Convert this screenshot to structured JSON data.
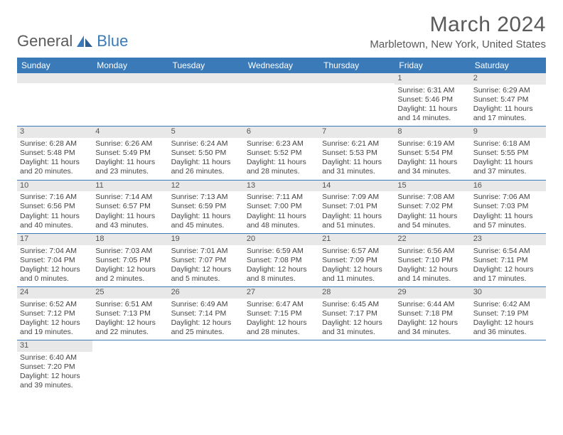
{
  "logo": {
    "text1": "General",
    "text2": "Blue"
  },
  "title": "March 2024",
  "location": "Marbletown, New York, United States",
  "colors": {
    "header_bg": "#3a7ab8",
    "daynum_bg": "#e8e8e8",
    "text": "#444444",
    "row_border": "#3a7ab8"
  },
  "day_headers": [
    "Sunday",
    "Monday",
    "Tuesday",
    "Wednesday",
    "Thursday",
    "Friday",
    "Saturday"
  ],
  "weeks": [
    [
      {
        "n": "",
        "sr": "",
        "ss": "",
        "dl": ""
      },
      {
        "n": "",
        "sr": "",
        "ss": "",
        "dl": ""
      },
      {
        "n": "",
        "sr": "",
        "ss": "",
        "dl": ""
      },
      {
        "n": "",
        "sr": "",
        "ss": "",
        "dl": ""
      },
      {
        "n": "",
        "sr": "",
        "ss": "",
        "dl": ""
      },
      {
        "n": "1",
        "sr": "Sunrise: 6:31 AM",
        "ss": "Sunset: 5:46 PM",
        "dl": "Daylight: 11 hours and 14 minutes."
      },
      {
        "n": "2",
        "sr": "Sunrise: 6:29 AM",
        "ss": "Sunset: 5:47 PM",
        "dl": "Daylight: 11 hours and 17 minutes."
      }
    ],
    [
      {
        "n": "3",
        "sr": "Sunrise: 6:28 AM",
        "ss": "Sunset: 5:48 PM",
        "dl": "Daylight: 11 hours and 20 minutes."
      },
      {
        "n": "4",
        "sr": "Sunrise: 6:26 AM",
        "ss": "Sunset: 5:49 PM",
        "dl": "Daylight: 11 hours and 23 minutes."
      },
      {
        "n": "5",
        "sr": "Sunrise: 6:24 AM",
        "ss": "Sunset: 5:50 PM",
        "dl": "Daylight: 11 hours and 26 minutes."
      },
      {
        "n": "6",
        "sr": "Sunrise: 6:23 AM",
        "ss": "Sunset: 5:52 PM",
        "dl": "Daylight: 11 hours and 28 minutes."
      },
      {
        "n": "7",
        "sr": "Sunrise: 6:21 AM",
        "ss": "Sunset: 5:53 PM",
        "dl": "Daylight: 11 hours and 31 minutes."
      },
      {
        "n": "8",
        "sr": "Sunrise: 6:19 AM",
        "ss": "Sunset: 5:54 PM",
        "dl": "Daylight: 11 hours and 34 minutes."
      },
      {
        "n": "9",
        "sr": "Sunrise: 6:18 AM",
        "ss": "Sunset: 5:55 PM",
        "dl": "Daylight: 11 hours and 37 minutes."
      }
    ],
    [
      {
        "n": "10",
        "sr": "Sunrise: 7:16 AM",
        "ss": "Sunset: 6:56 PM",
        "dl": "Daylight: 11 hours and 40 minutes."
      },
      {
        "n": "11",
        "sr": "Sunrise: 7:14 AM",
        "ss": "Sunset: 6:57 PM",
        "dl": "Daylight: 11 hours and 43 minutes."
      },
      {
        "n": "12",
        "sr": "Sunrise: 7:13 AM",
        "ss": "Sunset: 6:59 PM",
        "dl": "Daylight: 11 hours and 45 minutes."
      },
      {
        "n": "13",
        "sr": "Sunrise: 7:11 AM",
        "ss": "Sunset: 7:00 PM",
        "dl": "Daylight: 11 hours and 48 minutes."
      },
      {
        "n": "14",
        "sr": "Sunrise: 7:09 AM",
        "ss": "Sunset: 7:01 PM",
        "dl": "Daylight: 11 hours and 51 minutes."
      },
      {
        "n": "15",
        "sr": "Sunrise: 7:08 AM",
        "ss": "Sunset: 7:02 PM",
        "dl": "Daylight: 11 hours and 54 minutes."
      },
      {
        "n": "16",
        "sr": "Sunrise: 7:06 AM",
        "ss": "Sunset: 7:03 PM",
        "dl": "Daylight: 11 hours and 57 minutes."
      }
    ],
    [
      {
        "n": "17",
        "sr": "Sunrise: 7:04 AM",
        "ss": "Sunset: 7:04 PM",
        "dl": "Daylight: 12 hours and 0 minutes."
      },
      {
        "n": "18",
        "sr": "Sunrise: 7:03 AM",
        "ss": "Sunset: 7:05 PM",
        "dl": "Daylight: 12 hours and 2 minutes."
      },
      {
        "n": "19",
        "sr": "Sunrise: 7:01 AM",
        "ss": "Sunset: 7:07 PM",
        "dl": "Daylight: 12 hours and 5 minutes."
      },
      {
        "n": "20",
        "sr": "Sunrise: 6:59 AM",
        "ss": "Sunset: 7:08 PM",
        "dl": "Daylight: 12 hours and 8 minutes."
      },
      {
        "n": "21",
        "sr": "Sunrise: 6:57 AM",
        "ss": "Sunset: 7:09 PM",
        "dl": "Daylight: 12 hours and 11 minutes."
      },
      {
        "n": "22",
        "sr": "Sunrise: 6:56 AM",
        "ss": "Sunset: 7:10 PM",
        "dl": "Daylight: 12 hours and 14 minutes."
      },
      {
        "n": "23",
        "sr": "Sunrise: 6:54 AM",
        "ss": "Sunset: 7:11 PM",
        "dl": "Daylight: 12 hours and 17 minutes."
      }
    ],
    [
      {
        "n": "24",
        "sr": "Sunrise: 6:52 AM",
        "ss": "Sunset: 7:12 PM",
        "dl": "Daylight: 12 hours and 19 minutes."
      },
      {
        "n": "25",
        "sr": "Sunrise: 6:51 AM",
        "ss": "Sunset: 7:13 PM",
        "dl": "Daylight: 12 hours and 22 minutes."
      },
      {
        "n": "26",
        "sr": "Sunrise: 6:49 AM",
        "ss": "Sunset: 7:14 PM",
        "dl": "Daylight: 12 hours and 25 minutes."
      },
      {
        "n": "27",
        "sr": "Sunrise: 6:47 AM",
        "ss": "Sunset: 7:15 PM",
        "dl": "Daylight: 12 hours and 28 minutes."
      },
      {
        "n": "28",
        "sr": "Sunrise: 6:45 AM",
        "ss": "Sunset: 7:17 PM",
        "dl": "Daylight: 12 hours and 31 minutes."
      },
      {
        "n": "29",
        "sr": "Sunrise: 6:44 AM",
        "ss": "Sunset: 7:18 PM",
        "dl": "Daylight: 12 hours and 34 minutes."
      },
      {
        "n": "30",
        "sr": "Sunrise: 6:42 AM",
        "ss": "Sunset: 7:19 PM",
        "dl": "Daylight: 12 hours and 36 minutes."
      }
    ],
    [
      {
        "n": "31",
        "sr": "Sunrise: 6:40 AM",
        "ss": "Sunset: 7:20 PM",
        "dl": "Daylight: 12 hours and 39 minutes."
      },
      {
        "n": "",
        "sr": "",
        "ss": "",
        "dl": ""
      },
      {
        "n": "",
        "sr": "",
        "ss": "",
        "dl": ""
      },
      {
        "n": "",
        "sr": "",
        "ss": "",
        "dl": ""
      },
      {
        "n": "",
        "sr": "",
        "ss": "",
        "dl": ""
      },
      {
        "n": "",
        "sr": "",
        "ss": "",
        "dl": ""
      },
      {
        "n": "",
        "sr": "",
        "ss": "",
        "dl": ""
      }
    ]
  ]
}
